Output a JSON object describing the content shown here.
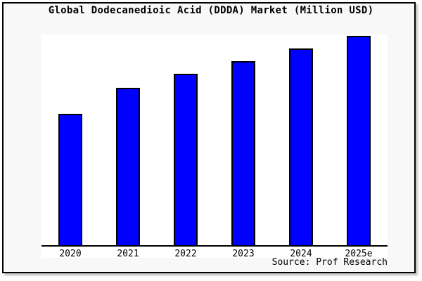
{
  "title": "Global Dodecanedioic Acid (DDDA) Market (Million USD)",
  "source": "Source: Prof Research",
  "colors": {
    "bar_fill": "#0000ff",
    "bar_border": "#000000",
    "background": "#f8f8f8",
    "plot_background": "#ffffff",
    "frame_border": "#000000",
    "axis": "#000000",
    "text": "#000000"
  },
  "chart_data": {
    "type": "bar",
    "title": "Global Dodecanedioic Acid (DDDA) Market (Million USD)",
    "categories": [
      "2020",
      "2021",
      "2022",
      "2023",
      "2024",
      "2025e"
    ],
    "values": [
      63,
      75.3,
      82,
      88,
      94,
      100
    ],
    "values_note": "no y-axis scale shown in image; values estimated from bar heights as percent of tallest bar (2025e = 100)",
    "xlabel": "",
    "ylabel": "",
    "ylim": [
      0,
      100.7
    ],
    "grid": false,
    "legend": false,
    "source_annotation": "Source: Prof Research"
  }
}
